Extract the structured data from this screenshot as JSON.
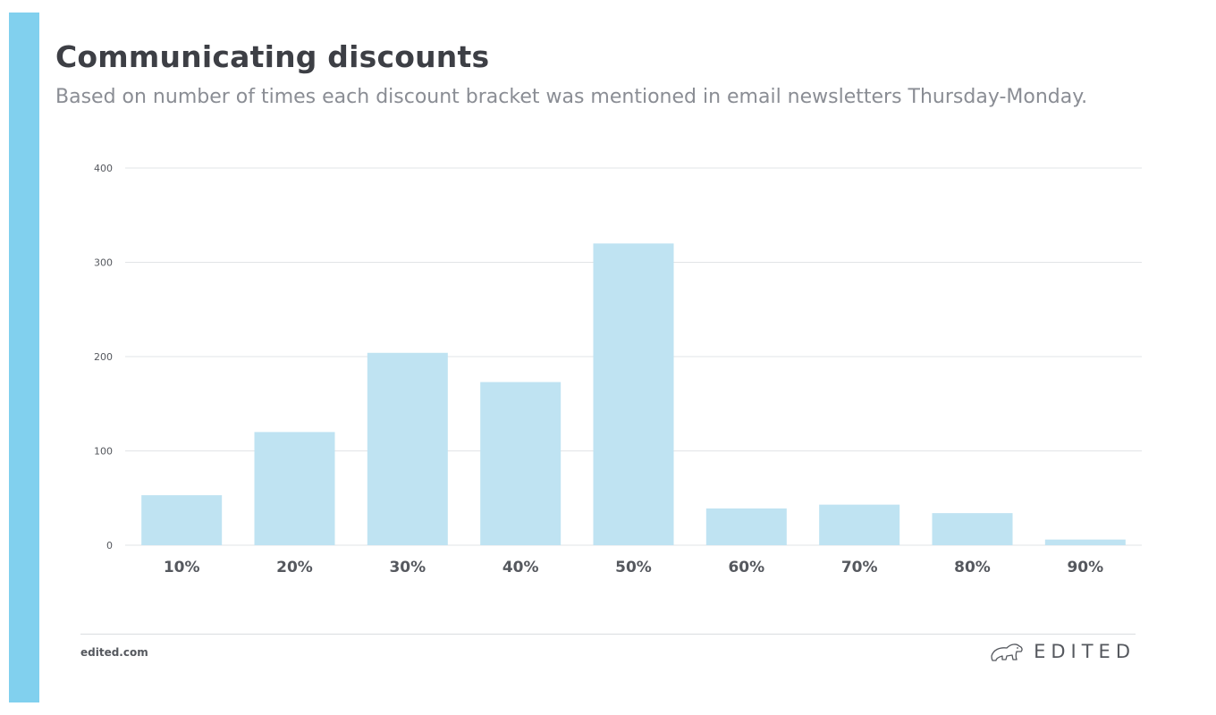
{
  "header": {
    "title": "Communicating discounts",
    "subtitle": "Based on number of times each discount bracket was mentioned in email newsletters Thursday-Monday."
  },
  "footer": {
    "url": "edited.com",
    "brand": "EDITED",
    "brand_icon": "polar-bear-icon"
  },
  "colors": {
    "accent_bar": "#81d0ee",
    "bar_fill": "#bfe3f2",
    "grid": "#e2e4e7",
    "axis_text": "#55585e"
  },
  "chart_data": {
    "type": "bar",
    "title": "",
    "xlabel": "",
    "ylabel": "",
    "categories": [
      "10%",
      "20%",
      "30%",
      "40%",
      "50%",
      "60%",
      "70%",
      "80%",
      "90%"
    ],
    "values": [
      53,
      120,
      204,
      173,
      320,
      39,
      43,
      34,
      6
    ],
    "ylim": [
      0,
      400
    ],
    "yticks": [
      "0",
      "100",
      "200",
      "300",
      "400"
    ],
    "grid": true,
    "legend": "none"
  }
}
